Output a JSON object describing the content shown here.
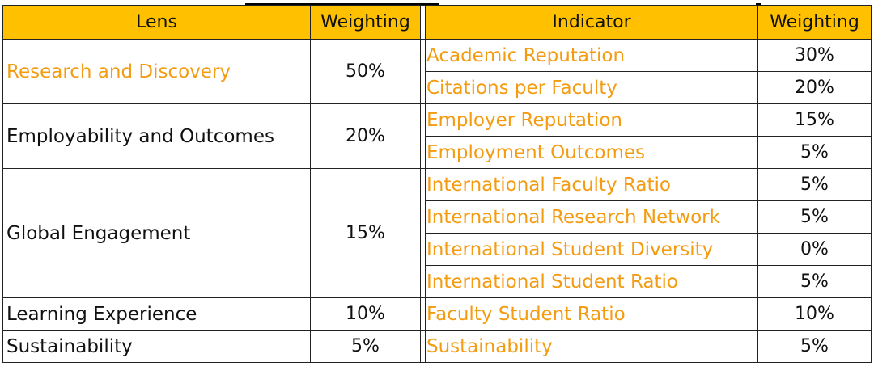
{
  "headers": {
    "lens": "Lens",
    "lens_weighting": "Weighting",
    "indicator": "Indicator",
    "indicator_weighting": "Weighting"
  },
  "lenses": [
    {
      "name": "Research and Discovery",
      "weighting": "50%",
      "indicators": [
        {
          "name": "Academic Reputation",
          "weighting": "30%"
        },
        {
          "name": "Citations per Faculty",
          "weighting": "20%"
        }
      ]
    },
    {
      "name": "Employability and Outcomes",
      "weighting": "20%",
      "indicators": [
        {
          "name": "Employer Reputation",
          "weighting": "15%"
        },
        {
          "name": "Employment Outcomes",
          "weighting": "5%"
        }
      ]
    },
    {
      "name": "Global Engagement",
      "weighting": "15%",
      "indicators": [
        {
          "name": "International Faculty Ratio",
          "weighting": "5%"
        },
        {
          "name": "International Research Network",
          "weighting": "5%"
        },
        {
          "name": "International Student Diversity",
          "weighting": "0%"
        },
        {
          "name": "International Student Ratio",
          "weighting": "5%"
        }
      ]
    },
    {
      "name": "Learning Experience",
      "weighting": "10%",
      "indicators": [
        {
          "name": "Faculty Student Ratio",
          "weighting": "10%"
        }
      ]
    },
    {
      "name": "Sustainability",
      "weighting": "5%",
      "indicators": [
        {
          "name": "Sustainability",
          "weighting": "5%"
        }
      ]
    }
  ],
  "colors": {
    "header_fill": "#ffc000",
    "indicator_text": "#f39c12",
    "border": "#222222"
  }
}
